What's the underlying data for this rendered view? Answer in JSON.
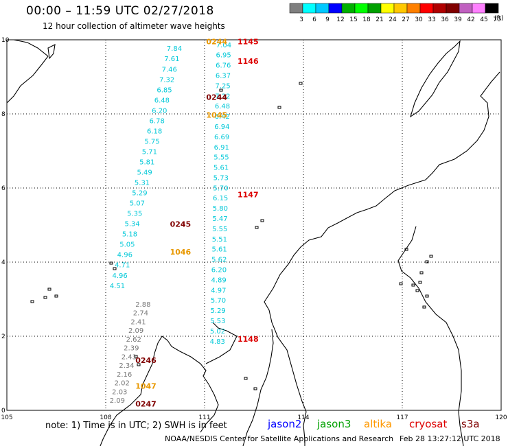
{
  "header": {
    "title": "00:00 – 11:59 UTC 02/27/2018",
    "subtitle": "12 hour collection of altimeter wave heights"
  },
  "colorbar": {
    "colors": [
      "#7f7f7f",
      "#00ffff",
      "#00c8ff",
      "#0000ff",
      "#00b000",
      "#00ff00",
      "#00a000",
      "#ffff00",
      "#ffc800",
      "#ff8000",
      "#ff0000",
      "#b00000",
      "#800000",
      "#c060c0",
      "#ff80ff",
      "#000000"
    ],
    "labels": [
      "3",
      "6",
      "9",
      "12",
      "15",
      "18",
      "21",
      "24",
      "27",
      "30",
      "33",
      "36",
      "39",
      "42",
      "45",
      "70"
    ],
    "unit": "(ft)"
  },
  "axes": {
    "x_ticks": [
      "105",
      "108",
      "111",
      "114",
      "117",
      "120"
    ],
    "y_ticks": [
      "0",
      "2",
      "4",
      "6",
      "8",
      "10"
    ]
  },
  "tracks": [
    {
      "name": "jason3",
      "color": "#00c8d8",
      "x0": 111.2,
      "x1": 110.0,
      "values": [
        "7.04",
        "6.95",
        "6.76",
        "6.37",
        "7.25",
        "7.22",
        "6.48",
        "6.42",
        "6.94",
        "6.69",
        "6.91",
        "5.55",
        "5.61",
        "5.73",
        "5.70",
        "6.15",
        "5.80",
        "5.47",
        "5.55",
        "5.51",
        "5.61",
        "5.62",
        "6.20",
        "4.89",
        "4.97",
        "5.70",
        "5.29",
        "5.53",
        "5.02",
        "4.83"
      ],
      "values2": [
        "7.84",
        "7.61",
        "7.46",
        "7.32",
        "6.85",
        "6.48",
        "6.20",
        "6.78",
        "6.18",
        "5.75",
        "5.71",
        "5.81",
        "5.49",
        "5.31",
        "5.29",
        "5.07",
        "5.35",
        "5.34",
        "5.18",
        "5.05",
        "4.96",
        "4.71",
        "4.96",
        "4.51"
      ],
      "grey": [
        "2.88",
        "2.74",
        "2.41",
        "2.09",
        "2.62",
        "2.39",
        "2.43",
        "2.34",
        "2.16",
        "2.02",
        "2.03",
        "2.09"
      ],
      "times": [
        {
          "label": "1145",
          "lat": 9.88,
          "color": "#dd0000"
        },
        {
          "label": "1146",
          "lat": 9.35,
          "color": "#dd0000"
        },
        {
          "label": "1147",
          "lat": 5.75,
          "color": "#dd0000"
        },
        {
          "label": "1148",
          "lat": 1.85,
          "color": "#dd0000"
        }
      ]
    }
  ],
  "track_times_other": [
    {
      "label": "0244",
      "lat": 9.88,
      "color": "#e89800"
    },
    {
      "label": "0244",
      "lat": 8.38,
      "color": "#800000"
    },
    {
      "label": "1045",
      "lat": 7.9,
      "color": "#e89800"
    },
    {
      "label": "0245",
      "lat": 4.95,
      "color": "#800000"
    },
    {
      "label": "1046",
      "lat": 4.2,
      "color": "#e89800"
    },
    {
      "label": "0246",
      "lat": 1.28,
      "color": "#800000"
    },
    {
      "label": "1047",
      "lat": 0.58,
      "color": "#e89800"
    },
    {
      "label": "0247",
      "lat": 0.1,
      "color": "#800000"
    }
  ],
  "footer": {
    "note": "note:  1) Time is in UTC;  2) SWH is in feet",
    "legend": [
      {
        "label": "jason2",
        "color": "#0000ff"
      },
      {
        "label": "jason3",
        "color": "#00a000"
      },
      {
        "label": "altika",
        "color": "#ff9900"
      },
      {
        "label": "cryosat",
        "color": "#dd0000"
      },
      {
        "label": "s3a",
        "color": "#800000"
      }
    ],
    "credit": "NOAA/NESDIS Center for Satellite Applications and Research",
    "credit_date": "Feb 28 13:27:12 UTC 2018"
  }
}
